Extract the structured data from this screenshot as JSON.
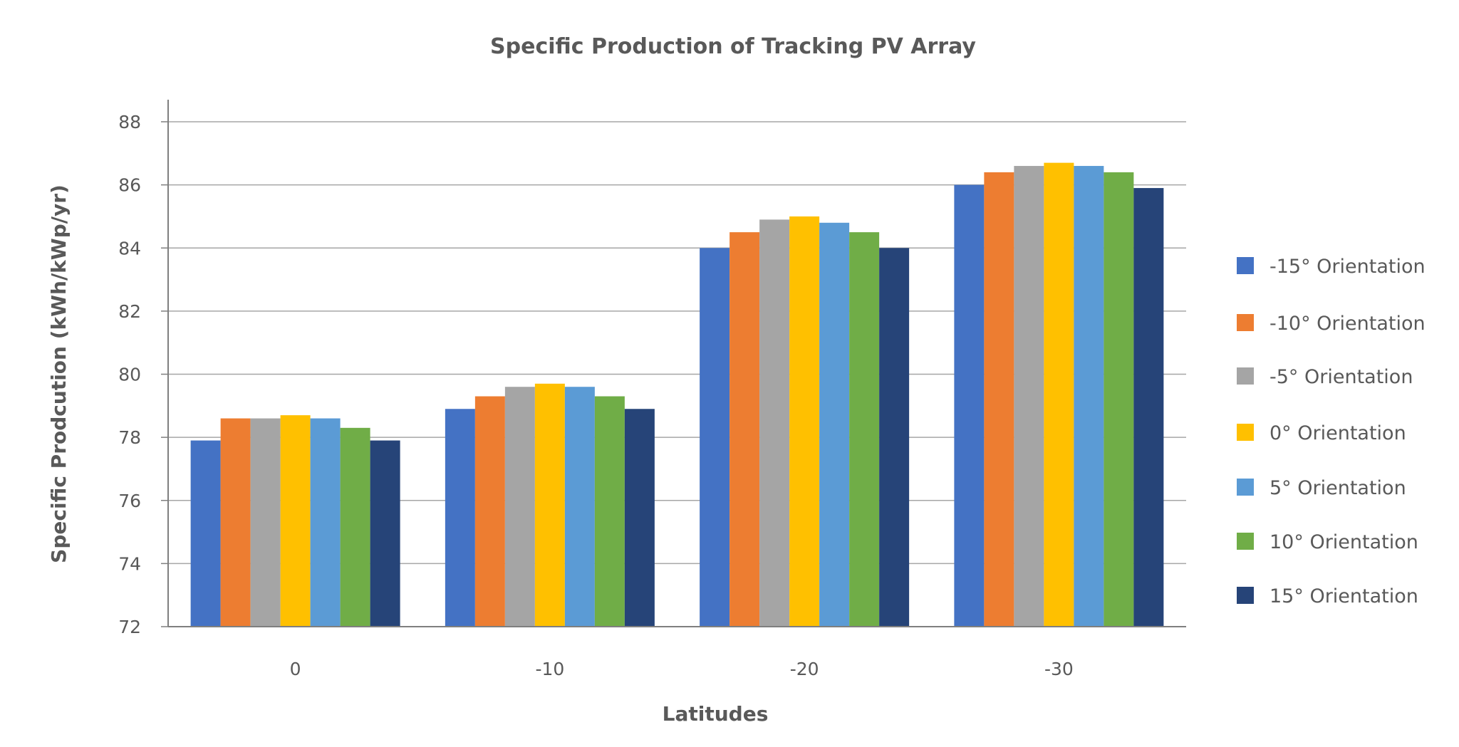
{
  "chart_data": {
    "type": "bar",
    "title": "Specific Production of Tracking PV Array",
    "xlabel": "Latitudes",
    "ylabel": "Specific Prodcution (kWh/kWp/yr)",
    "ylim": [
      72,
      88
    ],
    "yticks": [
      72,
      74,
      76,
      78,
      80,
      82,
      84,
      86,
      88
    ],
    "grid": true,
    "legend_position": "right",
    "categories": [
      "0",
      "-10",
      "-20",
      "-30"
    ],
    "series": [
      {
        "name": "-15° Orientation",
        "color": "#4472C4",
        "values": [
          77.9,
          78.9,
          84.0,
          86.0
        ]
      },
      {
        "name": "-10° Orientation",
        "color": "#ED7D31",
        "values": [
          78.6,
          79.3,
          84.5,
          86.4
        ]
      },
      {
        "name": "-5° Orientation",
        "color": "#A5A5A5",
        "values": [
          78.6,
          79.6,
          84.9,
          86.6
        ]
      },
      {
        "name": "0° Orientation",
        "color": "#FFC000",
        "values": [
          78.7,
          79.7,
          85.0,
          86.7
        ]
      },
      {
        "name": "5° Orientation",
        "color": "#5B9BD5",
        "values": [
          78.6,
          79.6,
          84.8,
          86.6
        ]
      },
      {
        "name": "10° Orientation",
        "color": "#70AD47",
        "values": [
          78.3,
          79.3,
          84.5,
          86.4
        ]
      },
      {
        "name": "15° Orientation",
        "color": "#264478",
        "values": [
          77.9,
          78.9,
          84.0,
          85.9
        ]
      }
    ]
  }
}
